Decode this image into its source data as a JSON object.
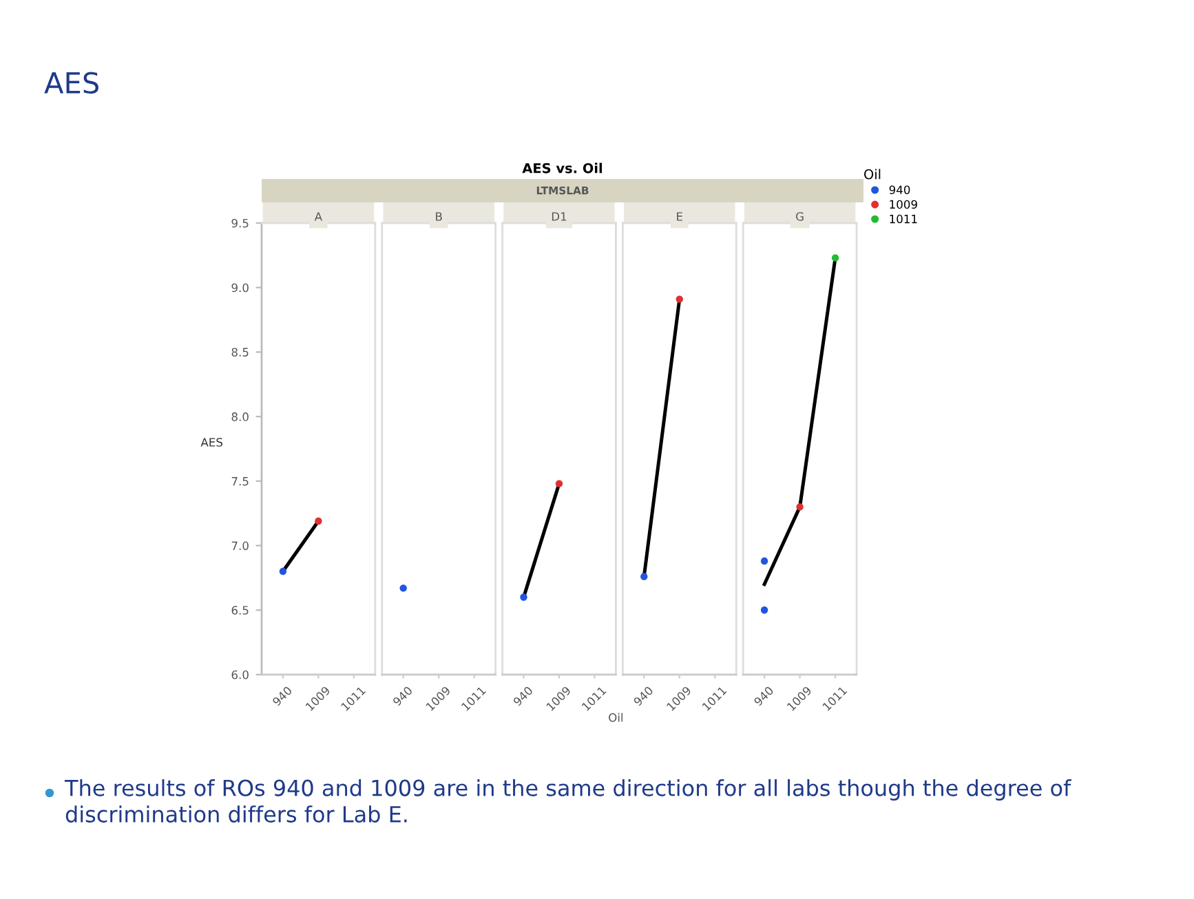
{
  "chart_data": [
    {
      "type": "scatter",
      "title": "A",
      "ylabel": "AES",
      "categories": [
        "940",
        "1009",
        "1011"
      ],
      "ylim": [
        6.0,
        9.5
      ],
      "yticks": [
        {
          "value": 6,
          "label": "6.0"
        },
        {
          "value": 6.5,
          "label": "6.5"
        },
        {
          "value": 7,
          "label": "7.0"
        },
        {
          "value": 7.5,
          "label": "7.5"
        },
        {
          "value": 8,
          "label": "8.0"
        },
        {
          "value": 8.5,
          "label": "8.5"
        },
        {
          "value": 9,
          "label": "9.0"
        },
        {
          "value": 9.5,
          "label": "9.5"
        }
      ],
      "grid": false,
      "marker": "circle",
      "legend": false,
      "annotations": [
        "AES",
        "AES vs. Oil",
        "LTMSLAB",
        "The results of ROs 940 and 1009 are in the same direction for all labs though the degree of discrimination differs for Lab E."
      ],
      "series": [
        {
          "type": "line",
          "marker": "none",
          "values": [
            6.8,
            7.19,
            null
          ],
          "color": "#000000"
        },
        {
          "values": [
            6.8,
            null,
            null
          ],
          "color": "#2255dd"
        },
        {
          "values": [
            null,
            7.19,
            null
          ],
          "color": "#e03030"
        }
      ]
    },
    {
      "type": "scatter",
      "title": "B",
      "categories": [
        "940",
        "1009",
        "1011"
      ],
      "ylim": [
        6.0,
        9.5
      ],
      "tick_labels": "x",
      "grid": false,
      "marker": "circle",
      "legend": false,
      "series": [
        {
          "values": [
            6.67,
            null,
            null
          ],
          "color": "#2255dd"
        }
      ]
    },
    {
      "type": "scatter",
      "title": "D1",
      "xlabel": "Oil",
      "categories": [
        "940",
        "1009",
        "1011"
      ],
      "ylim": [
        6.0,
        9.5
      ],
      "tick_labels": "x",
      "grid": false,
      "marker": "circle",
      "legend": false,
      "series": [
        {
          "type": "line",
          "marker": "none",
          "values": [
            6.6,
            7.48,
            null
          ],
          "color": "#000000"
        },
        {
          "values": [
            6.6,
            null,
            null
          ],
          "color": "#2255dd"
        },
        {
          "values": [
            null,
            7.48,
            null
          ],
          "color": "#e03030"
        }
      ]
    },
    {
      "type": "scatter",
      "title": "E",
      "categories": [
        "940",
        "1009",
        "1011"
      ],
      "ylim": [
        6.0,
        9.5
      ],
      "tick_labels": "x",
      "grid": false,
      "marker": "circle",
      "legend": false,
      "series": [
        {
          "type": "line",
          "marker": "none",
          "values": [
            6.76,
            8.91,
            null
          ],
          "color": "#000000"
        },
        {
          "values": [
            6.76,
            null,
            null
          ],
          "color": "#2255dd"
        },
        {
          "values": [
            null,
            8.91,
            null
          ],
          "color": "#e03030"
        }
      ]
    },
    {
      "type": "scatter",
      "title": "G",
      "legend_title": "Oil",
      "categories": [
        "940",
        "1009",
        "1011"
      ],
      "ylim": [
        6.0,
        9.5
      ],
      "tick_labels": "x",
      "grid": false,
      "marker": "circle",
      "legend": "right",
      "series": [
        {
          "type": "line",
          "marker": "none",
          "values": [
            6.7,
            7.3,
            9.23
          ],
          "color": "#000000"
        },
        {
          "name": "940",
          "values": [
            6.88,
            null,
            null
          ],
          "color": "#2255dd"
        },
        {
          "values": [
            6.5,
            null,
            null
          ],
          "color": "#2255dd"
        },
        {
          "name": "1009",
          "values": [
            null,
            7.3,
            null
          ],
          "color": "#e03030"
        },
        {
          "name": "1011",
          "values": [
            null,
            null,
            9.23
          ],
          "color": "#22bb33"
        }
      ]
    }
  ]
}
